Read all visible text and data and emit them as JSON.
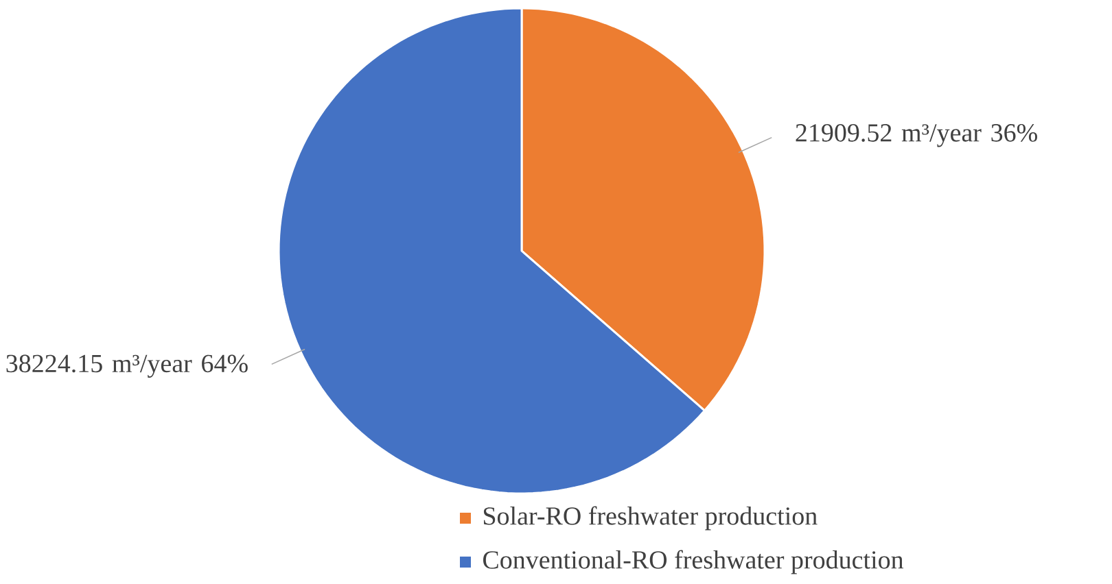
{
  "chart_data": {
    "type": "pie",
    "categories": [
      "Solar-RO freshwater production",
      "Conventional-RO freshwater production"
    ],
    "values": [
      21909.52,
      38224.15
    ],
    "colors": [
      "#ed7d31",
      "#4472c4"
    ],
    "value_labels": [
      "21909.52 m³/year 36%",
      "38224.15 m³/year 64%"
    ],
    "legend": "bottom"
  }
}
